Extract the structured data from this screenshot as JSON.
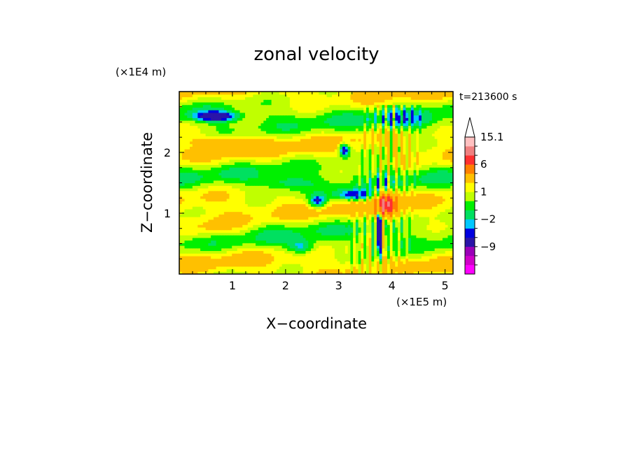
{
  "chart_data": {
    "type": "heatmap",
    "title": "zonal velocity",
    "xlabel": "X−coordinate",
    "ylabel": "Z−coordinate",
    "x_unit": "(×1E5 m)",
    "y_unit": "(×1E4 m)",
    "time_label": "t=213600 s",
    "xlim": [
      0,
      5.15
    ],
    "ylim": [
      0,
      3.0
    ],
    "x_ticks": [
      {
        "value": 1,
        "label": "1"
      },
      {
        "value": 2,
        "label": "2"
      },
      {
        "value": 3,
        "label": "3"
      },
      {
        "value": 4,
        "label": "4"
      },
      {
        "value": 5,
        "label": "5"
      }
    ],
    "y_ticks": [
      {
        "value": 1,
        "label": "1"
      },
      {
        "value": 2,
        "label": "2"
      }
    ],
    "colorbar": {
      "levels": [
        -15,
        -12,
        -9,
        -6,
        -3,
        -2,
        -1,
        0,
        1,
        2,
        3,
        6,
        9,
        12,
        15.1
      ],
      "colors": [
        "#ff00ff",
        "#d000c8",
        "#9b00b8",
        "#2a14a8",
        "#0000e0",
        "#00c8ff",
        "#00e060",
        "#00f000",
        "#c0ff00",
        "#ffff00",
        "#ffc000",
        "#ff8000",
        "#ff3030",
        "#f08080",
        "#ffc0c0"
      ],
      "labels": [
        {
          "value": 15.1,
          "label": "15.1"
        },
        {
          "value": 6,
          "label": "6"
        },
        {
          "value": 1,
          "label": "1"
        },
        {
          "value": -2,
          "label": "−2"
        },
        {
          "value": -9,
          "label": "−9"
        }
      ]
    }
  }
}
